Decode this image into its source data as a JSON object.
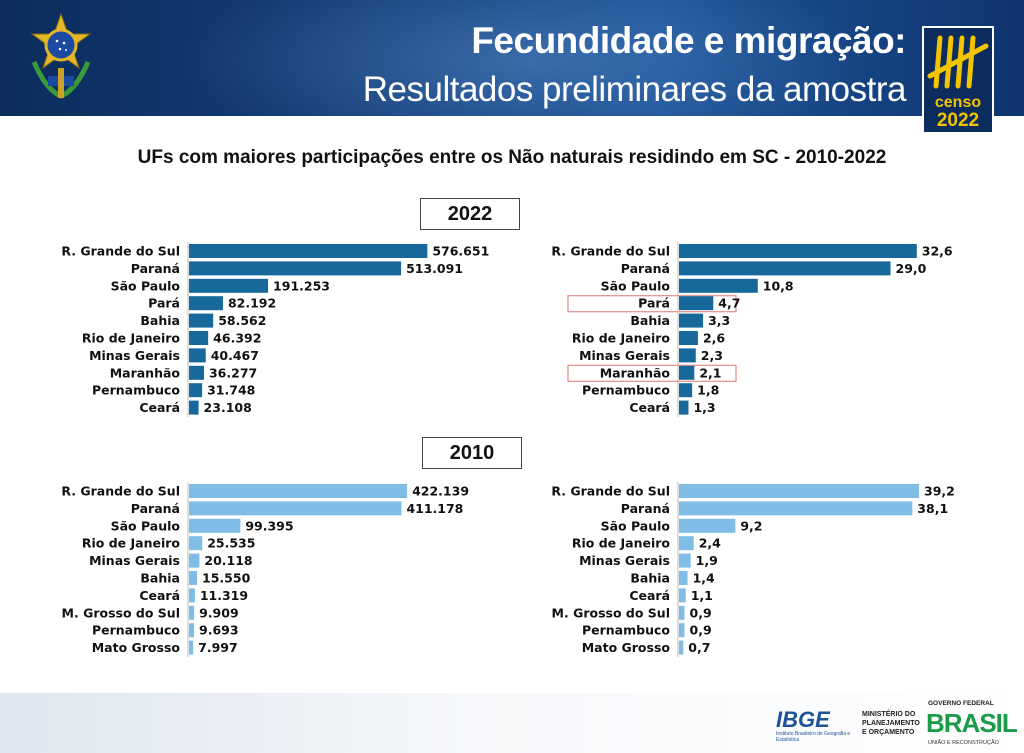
{
  "header": {
    "title_line1": "Fecundidade e migração:",
    "title_line2": "Resultados preliminares da amostra",
    "logo_text": "censo",
    "logo_year": "2022"
  },
  "subtitle": "UFs com maiores participações entre os Não naturais residindo em SC - 2010-2022",
  "year_labels": {
    "y2022": "2022",
    "y2010": "2010"
  },
  "highlighted_categories": [
    "Pará",
    "Maranhão"
  ],
  "colors": {
    "bar_2022": "#17699b",
    "bar_2010": "#7fbde6",
    "highlight_border": "#e58a8a",
    "header_bg": "#153f7a"
  },
  "footer": {
    "ibge": "IBGE",
    "ibge_sub": "Instituto Brasileiro de Geografia e Estatística",
    "ministry": [
      "MINISTÉRIO DO",
      "PLANEJAMENTO",
      "E ORÇAMENTO"
    ],
    "gov_label": "GOVERNO FEDERAL",
    "brasil": "BRASIL",
    "uniao": "UNIÃO E RECONSTRUÇÃO"
  },
  "chart_data": [
    {
      "type": "bar",
      "orientation": "horizontal",
      "year": "2022",
      "categories": [
        "R. Grande do Sul",
        "Paraná",
        "São Paulo",
        "Pará",
        "Bahia",
        "Rio de Janeiro",
        "Minas Gerais",
        "Maranhão",
        "Pernambuco",
        "Ceará"
      ],
      "values": [
        576651,
        513091,
        191253,
        82192,
        58562,
        46392,
        40467,
        36277,
        31748,
        23108
      ],
      "labels": [
        "576.651",
        "513.091",
        "191.253",
        "82.192",
        "58.562",
        "46.392",
        "40.467",
        "36.277",
        "31.748",
        "23.108"
      ],
      "xmax": 600000
    },
    {
      "type": "bar",
      "orientation": "horizontal",
      "year": "2022",
      "categories": [
        "R. Grande do Sul",
        "Paraná",
        "São Paulo",
        "Pará",
        "Bahia",
        "Rio de Janeiro",
        "Minas Gerais",
        "Maranhão",
        "Pernambuco",
        "Ceará"
      ],
      "values": [
        32.6,
        29.0,
        10.8,
        4.7,
        3.3,
        2.6,
        2.3,
        2.1,
        1.8,
        1.3
      ],
      "labels": [
        "32,6",
        "29,0",
        "10,8",
        "4,7",
        "3,3",
        "2,6",
        "2,3",
        "2,1",
        "1,8",
        "1,3"
      ],
      "xmax": 34
    },
    {
      "type": "bar",
      "orientation": "horizontal",
      "year": "2010",
      "categories": [
        "R. Grande do Sul",
        "Paraná",
        "São Paulo",
        "Rio de Janeiro",
        "Minas Gerais",
        "Bahia",
        "Ceará",
        "M. Grosso do Sul",
        "Pernambuco",
        "Mato Grosso"
      ],
      "values": [
        422139,
        411178,
        99395,
        25535,
        20118,
        15550,
        11319,
        9909,
        9693,
        7997
      ],
      "labels": [
        "422.139",
        "411.178",
        "99.395",
        "25.535",
        "20.118",
        "15.550",
        "11.319",
        "9.909",
        "9.693",
        "7.997"
      ],
      "xmax": 480000
    },
    {
      "type": "bar",
      "orientation": "horizontal",
      "year": "2010",
      "categories": [
        "R. Grande do Sul",
        "Paraná",
        "São Paulo",
        "Rio de Janeiro",
        "Minas Gerais",
        "Bahia",
        "Ceará",
        "M. Grosso do Sul",
        "Pernambuco",
        "Mato Grosso"
      ],
      "values": [
        39.2,
        38.1,
        9.2,
        2.4,
        1.9,
        1.4,
        1.1,
        0.9,
        0.9,
        0.7
      ],
      "labels": [
        "39,2",
        "38,1",
        "9,2",
        "2,4",
        "1,9",
        "1,4",
        "1,1",
        "0,9",
        "0,9",
        "0,7"
      ],
      "xmax": 40.5
    }
  ]
}
